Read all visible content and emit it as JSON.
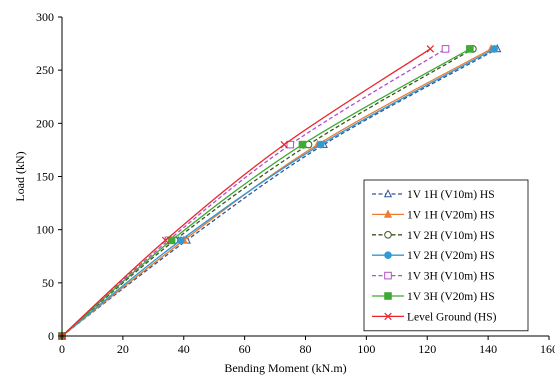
{
  "chart_data": {
    "type": "line",
    "title": "",
    "xlabel": "Bending Moment (kN.m)",
    "ylabel": "Load (kN)",
    "xlim": [
      0,
      160
    ],
    "ylim": [
      0,
      300
    ],
    "xticks": [
      0,
      20,
      40,
      60,
      80,
      100,
      120,
      140,
      160
    ],
    "yticks": [
      0,
      50,
      100,
      150,
      200,
      250,
      300
    ],
    "grid": false,
    "legend_position": "bottom-right",
    "series": [
      {
        "name": "1V 1H (V10m) HS",
        "color": "#2E5597",
        "dash": "dashed",
        "marker": "triangle-open",
        "points": [
          [
            0,
            0
          ],
          [
            41,
            90
          ],
          [
            86,
            180
          ],
          [
            143,
            270
          ]
        ]
      },
      {
        "name": "1V 1H (V20m) HS",
        "color": "#ED7D31",
        "dash": "solid",
        "marker": "triangle",
        "points": [
          [
            0,
            0
          ],
          [
            40,
            90
          ],
          [
            84,
            180
          ],
          [
            141,
            270
          ]
        ]
      },
      {
        "name": "1V 2H (V10m) HS",
        "color": "#375623",
        "dash": "dashed",
        "marker": "circle-open",
        "points": [
          [
            0,
            0
          ],
          [
            37,
            90
          ],
          [
            81,
            180
          ],
          [
            135,
            270
          ]
        ]
      },
      {
        "name": "1V 2H (V20m) HS",
        "color": "#2E9AD6",
        "dash": "solid",
        "marker": "circle",
        "points": [
          [
            0,
            0
          ],
          [
            39,
            90
          ],
          [
            85,
            180
          ],
          [
            142,
            270
          ]
        ]
      },
      {
        "name": "1V 3H (V10m) HS",
        "color": "#B44FC8",
        "dash": "dashed",
        "marker": "square-open",
        "points": [
          [
            0,
            0
          ],
          [
            35,
            90
          ],
          [
            75,
            180
          ],
          [
            126,
            270
          ]
        ]
      },
      {
        "name": "1V 3H (V20m) HS",
        "color": "#3FAA35",
        "dash": "solid",
        "marker": "square",
        "points": [
          [
            0,
            0
          ],
          [
            36,
            90
          ],
          [
            79,
            180
          ],
          [
            134,
            270
          ]
        ]
      },
      {
        "name": "Level Ground (HS)",
        "color": "#E8262A",
        "dash": "solid",
        "marker": "x",
        "points": [
          [
            0,
            0
          ],
          [
            34,
            90
          ],
          [
            73,
            180
          ],
          [
            121,
            270
          ]
        ]
      }
    ]
  }
}
